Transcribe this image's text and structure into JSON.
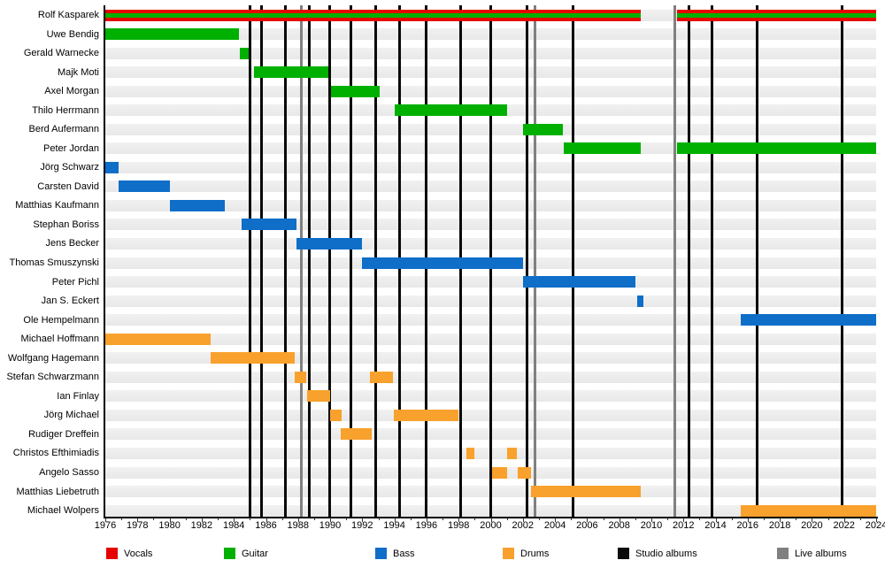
{
  "chart_data": {
    "type": "timeline",
    "title": "",
    "x_axis": {
      "start": 1976,
      "end": 2024,
      "tick_interval": 2,
      "minor_tick_interval": 1,
      "tick_labels": [
        "1976",
        "1978",
        "1980",
        "1982",
        "1984",
        "1986",
        "1988",
        "1990",
        "1992",
        "1994",
        "1996",
        "1998",
        "2000",
        "2002",
        "2004",
        "2006",
        "2008",
        "2010",
        "2012",
        "2014",
        "2016",
        "2018",
        "2020",
        "2022",
        "2024"
      ]
    },
    "role_colors": {
      "Vocals": "#e60000",
      "Guitar": "#00b000",
      "Bass": "#0e6ec8",
      "Drums": "#f8a12c"
    },
    "album_line_colors": {
      "studio": "#0a0a0a",
      "live": "#808080"
    },
    "band_color": "#e8e8e8",
    "members": [
      {
        "name": "Rolf Kasparek",
        "role": "Vocals",
        "role2": "Guitar",
        "stints": [
          [
            1976,
            2009.35
          ],
          [
            2011.6,
            2024
          ]
        ]
      },
      {
        "name": "Uwe Bendig",
        "role": "Guitar",
        "stints": [
          [
            1976,
            1984.3
          ]
        ]
      },
      {
        "name": "Gerald Warnecke",
        "role": "Guitar",
        "stints": [
          [
            1984.35,
            1984.95
          ]
        ]
      },
      {
        "name": "Majk Moti",
        "role": "Guitar",
        "stints": [
          [
            1985.25,
            1989.9
          ]
        ]
      },
      {
        "name": "Axel Morgan",
        "role": "Guitar",
        "stints": [
          [
            1990.05,
            1993.1
          ]
        ]
      },
      {
        "name": "Thilo Herrmann",
        "role": "Guitar",
        "stints": [
          [
            1994.0,
            2001.0
          ]
        ]
      },
      {
        "name": "Berd Aufermann",
        "role": "Guitar",
        "stints": [
          [
            2002.0,
            2004.5
          ]
        ]
      },
      {
        "name": "Peter Jordan",
        "role": "Guitar",
        "stints": [
          [
            2004.55,
            2009.35
          ],
          [
            2011.6,
            2024
          ]
        ]
      },
      {
        "name": "Jörg Schwarz",
        "role": "Bass",
        "stints": [
          [
            1976,
            1976.8
          ]
        ]
      },
      {
        "name": "Carsten David",
        "role": "Bass",
        "stints": [
          [
            1976.8,
            1980.0
          ]
        ]
      },
      {
        "name": "Matthias Kaufmann",
        "role": "Bass",
        "stints": [
          [
            1980.0,
            1983.45
          ]
        ]
      },
      {
        "name": "Stephan Boriss",
        "role": "Bass",
        "stints": [
          [
            1984.5,
            1987.9
          ]
        ]
      },
      {
        "name": "Jens Becker",
        "role": "Bass",
        "stints": [
          [
            1987.9,
            1992.0
          ]
        ]
      },
      {
        "name": "Thomas Smuszynski",
        "role": "Bass",
        "stints": [
          [
            1992.0,
            2002.0
          ]
        ]
      },
      {
        "name": "Peter Pichl",
        "role": "Bass",
        "stints": [
          [
            2002.0,
            2009.0
          ]
        ]
      },
      {
        "name": "Jan S. Eckert",
        "role": "Bass",
        "stints": [
          [
            2009.1,
            2009.5
          ]
        ]
      },
      {
        "name": "Ole Hempelmann",
        "role": "Bass",
        "stints": [
          [
            2015.55,
            2024
          ]
        ]
      },
      {
        "name": "Michael Hoffmann",
        "role": "Drums",
        "stints": [
          [
            1976,
            1982.55
          ]
        ]
      },
      {
        "name": "Wolfgang Hagemann",
        "role": "Drums",
        "stints": [
          [
            1982.55,
            1987.8
          ]
        ]
      },
      {
        "name": "Stefan Schwarzmann",
        "role": "Drums",
        "stints": [
          [
            1987.8,
            1988.5
          ],
          [
            1992.45,
            1993.9
          ]
        ]
      },
      {
        "name": "Ian Finlay",
        "role": "Drums",
        "stints": [
          [
            1988.55,
            1990.0
          ]
        ]
      },
      {
        "name": "Jörg Michael",
        "role": "Drums",
        "stints": [
          [
            1990.0,
            1990.7
          ],
          [
            1993.95,
            1998.0
          ]
        ]
      },
      {
        "name": "Rudiger Dreffein",
        "role": "Drums",
        "stints": [
          [
            1990.65,
            1992.6
          ]
        ]
      },
      {
        "name": "Christos Efthimiadis",
        "role": "Drums",
        "stints": [
          [
            1998.5,
            1999.0
          ],
          [
            2001.0,
            2001.65
          ]
        ]
      },
      {
        "name": "Angelo Sasso",
        "role": "Drums",
        "stints": [
          [
            2000.1,
            2001.05
          ],
          [
            2001.7,
            2002.5
          ]
        ]
      },
      {
        "name": "Matthias Liebetruth",
        "role": "Drums",
        "stints": [
          [
            2002.5,
            2009.35
          ]
        ]
      },
      {
        "name": "Michael Wolpers",
        "role": "Drums",
        "stints": [
          [
            2015.55,
            2024
          ]
        ]
      }
    ],
    "albums": {
      "studio": [
        1985.0,
        1985.75,
        1987.2,
        1988.7,
        1989.95,
        1991.3,
        1992.85,
        1994.3,
        1995.95,
        1998.1,
        2000.0,
        2002.25,
        2005.1,
        2012.35,
        2013.75,
        2016.6,
        2021.85
      ],
      "live": [
        1988.2,
        2002.75,
        2011.45
      ]
    },
    "legend": [
      {
        "label": "Vocals",
        "color": "#e60000"
      },
      {
        "label": "Guitar",
        "color": "#00b000"
      },
      {
        "label": "Bass",
        "color": "#0e6ec8"
      },
      {
        "label": "Drums",
        "color": "#f8a12c"
      },
      {
        "label": "Studio albums",
        "color": "#0a0a0a"
      },
      {
        "label": "Live albums",
        "color": "#808080"
      }
    ]
  }
}
